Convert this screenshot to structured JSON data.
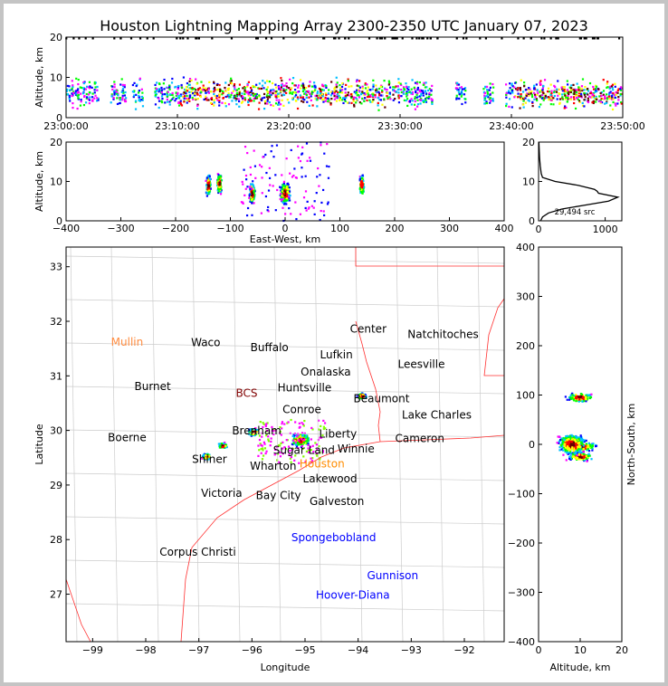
{
  "title": "Houston Lightning Mapping Array 2300-2350 UTC January 07, 2023",
  "chart_data": [
    {
      "name": "time-altitude",
      "type": "scatter",
      "ylabel": "Altitude, km",
      "ylim": [
        0,
        20
      ],
      "yticks": [
        "0",
        "10",
        "20"
      ],
      "xlim_min": [
        0,
        50
      ],
      "xticks": [
        "23:00:00",
        "23:10:00",
        "23:20:00",
        "23:30:00",
        "23:40:00",
        "23:50:00"
      ],
      "activity_minutes": [
        [
          0,
          3
        ],
        [
          4,
          5.5
        ],
        [
          6,
          7
        ],
        [
          8,
          16
        ],
        [
          16,
          25
        ],
        [
          25,
          31
        ],
        [
          31,
          33
        ],
        [
          35,
          36
        ],
        [
          37.5,
          38.5
        ],
        [
          39.5,
          50
        ]
      ]
    },
    {
      "name": "ew-altitude",
      "type": "scatter",
      "xlabel": "East-West, km",
      "ylabel": "Altitude, km",
      "xlim": [
        -400,
        400
      ],
      "ylim": [
        0,
        20
      ],
      "xticks": [
        "−400",
        "−300",
        "−200",
        "−100",
        "0",
        "100",
        "200",
        "300",
        "400"
      ],
      "yticks": [
        "0",
        "10",
        "20"
      ]
    },
    {
      "name": "altitude-histogram",
      "type": "line",
      "ylim": [
        0,
        20
      ],
      "xlim": [
        0,
        1250
      ],
      "xticks": [
        "0",
        "1000"
      ],
      "yticks": [
        "0",
        "10",
        "20"
      ],
      "annotation": "29,494 src",
      "altitude": [
        0,
        1,
        2,
        3,
        4,
        5,
        6,
        7,
        7.5,
        8,
        9,
        10,
        11,
        12,
        14,
        16,
        20
      ],
      "count": [
        30,
        60,
        150,
        350,
        700,
        1050,
        1190,
        900,
        880,
        840,
        600,
        250,
        60,
        40,
        25,
        15,
        5
      ]
    },
    {
      "name": "plan-view-map",
      "type": "scatter",
      "xlabel": "Longitude",
      "ylabel": "Latitude",
      "xlim": [
        -99.5,
        -91.25
      ],
      "ylim": [
        26.13,
        33.36
      ],
      "xticks": [
        "−99",
        "−98",
        "−97",
        "−96",
        "−95",
        "−94",
        "−93",
        "−92"
      ],
      "yticks": [
        "27",
        "28",
        "29",
        "30",
        "31",
        "32",
        "33"
      ],
      "places": [
        {
          "n": "Mullin",
          "lon": -98.35,
          "lat": 31.62,
          "c": "#ff8c40"
        },
        {
          "n": "Waco",
          "lon": -96.87,
          "lat": 31.61,
          "c": "#000"
        },
        {
          "n": "Buffalo",
          "lon": -95.67,
          "lat": 31.52,
          "c": "#000"
        },
        {
          "n": "Center",
          "lon": -93.81,
          "lat": 31.86,
          "c": "#000"
        },
        {
          "n": "Natchitoches",
          "lon": -92.4,
          "lat": 31.76,
          "c": "#000"
        },
        {
          "n": "Lufkin",
          "lon": -94.41,
          "lat": 31.39,
          "c": "#000"
        },
        {
          "n": "Leesville",
          "lon": -92.81,
          "lat": 31.21,
          "c": "#000"
        },
        {
          "n": "Burnet",
          "lon": -97.87,
          "lat": 30.81,
          "c": "#000"
        },
        {
          "n": "BCS",
          "lon": -96.1,
          "lat": 30.68,
          "c": "#800000"
        },
        {
          "n": "Huntsville",
          "lon": -95.01,
          "lat": 30.78,
          "c": "#000"
        },
        {
          "n": "Onalaska",
          "lon": -94.61,
          "lat": 30.86,
          "c": "#000"
        },
        {
          "n": "Conroe",
          "lon": -95.06,
          "lat": 30.38,
          "c": "#000"
        },
        {
          "n": "Lake Charles",
          "lon": -92.52,
          "lat": 30.28,
          "c": "#000"
        },
        {
          "n": "Brenham",
          "lon": -95.91,
          "lat": 30.21,
          "c": "#000"
        },
        {
          "n": "Liberty",
          "lon": -94.38,
          "lat": 30.15,
          "c": "#000"
        },
        {
          "n": "Beaumont",
          "lon": -93.56,
          "lat": 30.15,
          "c": "#000"
        },
        {
          "n": "Winnie",
          "lon": -94.04,
          "lat": 29.88,
          "c": "#000"
        },
        {
          "n": "Boerne",
          "lon": -98.35,
          "lat": 29.87,
          "c": "#000"
        },
        {
          "n": "Cameron",
          "lon": -92.84,
          "lat": 29.85,
          "c": "#000"
        },
        {
          "n": "Houston",
          "lon": -94.68,
          "lat": 29.82,
          "c": "#ff8c00"
        },
        {
          "n": "Sugar Land",
          "lon": -95.02,
          "lat": 29.64,
          "c": "#000"
        },
        {
          "n": "Lakewood",
          "lon": -94.53,
          "lat": 29.55,
          "c": "#000"
        },
        {
          "n": "Shiner",
          "lon": -96.8,
          "lat": 29.47,
          "c": "#000"
        },
        {
          "n": "Wharton",
          "lon": -95.6,
          "lat": 29.35,
          "c": "#000"
        },
        {
          "n": "Galveston",
          "lon": -94.4,
          "lat": 29.35,
          "c": "#000"
        },
        {
          "n": "Bay City",
          "lon": -95.5,
          "lat": 29.02,
          "c": "#000"
        },
        {
          "n": "Victoria",
          "lon": -96.57,
          "lat": 28.85,
          "c": "#000"
        },
        {
          "n": "Corpus Christi",
          "lon": -97.02,
          "lat": 27.77,
          "c": "#000"
        },
        {
          "n": "Spongebobland",
          "lon": -94.46,
          "lat": 28.04,
          "c": "#0000ff"
        },
        {
          "n": "Gunnison",
          "lon": -93.35,
          "lat": 27.34,
          "c": "#0000ff"
        },
        {
          "n": "Hoover-Diana",
          "lon": -94.1,
          "lat": 26.98,
          "c": "#0000ff"
        }
      ],
      "storms": [
        {
          "lon": -96.85,
          "lat": 29.52,
          "ew": -140,
          "ns": -25,
          "alt": 8,
          "size": 1
        },
        {
          "lon": -96.55,
          "lat": 29.72,
          "ew": -120,
          "ns": -5,
          "alt": 8.5,
          "size": 1
        },
        {
          "lon": -95.97,
          "lat": 29.97,
          "ew": -60,
          "ns": 8,
          "alt": 6,
          "size": 1.2
        },
        {
          "lon": -95.08,
          "lat": 29.82,
          "ew": 0,
          "ns": 0,
          "alt": 6,
          "size": 2.2
        },
        {
          "lon": -93.93,
          "lat": 30.63,
          "ew": 140,
          "ns": 95,
          "alt": 8,
          "size": 1
        }
      ]
    },
    {
      "name": "altitude-ns",
      "type": "scatter",
      "xlabel": "Altitude, km",
      "ylabel": "North-South, km",
      "xlim": [
        0,
        20
      ],
      "ylim": [
        -400,
        400
      ],
      "xticks": [
        "0",
        "10",
        "20"
      ],
      "yticks": [
        "400",
        "300",
        "200",
        "100",
        "0",
        "−100",
        "−200",
        "−300",
        "−400"
      ]
    }
  ],
  "colors": {
    "coast": "#ff3030",
    "county": "#bbbbbb"
  }
}
